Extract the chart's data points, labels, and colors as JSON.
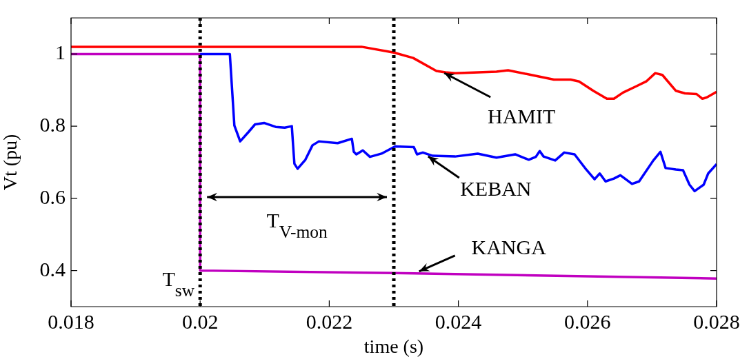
{
  "chart_data": {
    "type": "line",
    "xlabel": "time (s)",
    "ylabel": "Vt (pu)",
    "xlim": [
      0.018,
      0.028
    ],
    "xticks": [
      0.018,
      0.02,
      0.022,
      0.024,
      0.026,
      0.028
    ],
    "ylim": [
      0.3,
      1.1
    ],
    "yticks": [
      0.4,
      0.6,
      0.8,
      1
    ],
    "grid": false,
    "legend": false,
    "line_style": "solid",
    "marker": "none",
    "series": [
      {
        "color": "#ff0000",
        "x": [
          0.018,
          0.0225,
          0.023,
          0.0233,
          0.02366,
          0.0238,
          0.02395,
          0.02459,
          0.02477,
          0.02513,
          0.02548,
          0.02574,
          0.02587,
          0.02609,
          0.0263,
          0.02641,
          0.02655,
          0.02676,
          0.02691,
          0.02705,
          0.02716,
          0.02737,
          0.02751,
          0.02769,
          0.02778,
          0.02785,
          0.028
        ],
        "values": [
          1.02,
          1.02,
          1.004,
          0.989,
          0.953,
          0.949,
          0.947,
          0.951,
          0.955,
          0.942,
          0.929,
          0.929,
          0.924,
          0.898,
          0.876,
          0.876,
          0.893,
          0.911,
          0.924,
          0.947,
          0.942,
          0.898,
          0.891,
          0.889,
          0.876,
          0.88,
          0.895
        ]
      },
      {
        "color": "#0000ff",
        "x": [
          0.02,
          0.02046,
          0.02053,
          0.02062,
          0.02075,
          0.02085,
          0.02099,
          0.02117,
          0.02131,
          0.02142,
          0.02144,
          0.02146,
          0.02151,
          0.02163,
          0.02174,
          0.02184,
          0.02213,
          0.02235,
          0.02238,
          0.02242,
          0.02252,
          0.02263,
          0.02281,
          0.02302,
          0.02331,
          0.02336,
          0.02345,
          0.0236,
          0.02395,
          0.0243,
          0.02459,
          0.02488,
          0.02509,
          0.0252,
          0.02526,
          0.02532,
          0.0255,
          0.02564,
          0.0258,
          0.02598,
          0.02611,
          0.02619,
          0.02628,
          0.02641,
          0.02651,
          0.02669,
          0.0268,
          0.02702,
          0.02713,
          0.02721,
          0.02737,
          0.02748,
          0.02758,
          0.02766,
          0.0278,
          0.02787,
          0.028
        ],
        "values": [
          1,
          1,
          0.802,
          0.758,
          0.784,
          0.805,
          0.809,
          0.798,
          0.796,
          0.8,
          0.747,
          0.696,
          0.682,
          0.707,
          0.747,
          0.758,
          0.753,
          0.765,
          0.729,
          0.722,
          0.733,
          0.715,
          0.724,
          0.744,
          0.742,
          0.722,
          0.727,
          0.718,
          0.716,
          0.724,
          0.713,
          0.722,
          0.707,
          0.715,
          0.731,
          0.716,
          0.705,
          0.727,
          0.722,
          0.68,
          0.653,
          0.669,
          0.647,
          0.655,
          0.664,
          0.64,
          0.647,
          0.705,
          0.729,
          0.684,
          0.68,
          0.678,
          0.638,
          0.62,
          0.638,
          0.669,
          0.695
        ]
      },
      {
        "color": "#c000c0",
        "x": [
          0.018,
          0.02,
          0.02,
          0.023,
          0.028
        ],
        "values": [
          1,
          1,
          0.4,
          0.393,
          0.378
        ]
      }
    ],
    "ref_lines": [
      {
        "axis": "x",
        "value": 0.02,
        "label": "T$_{sw}$",
        "color": "#000000",
        "line_style": "dotted"
      },
      {
        "axis": "x",
        "value": 0.023,
        "color": "#000000",
        "line_style": "dotted"
      }
    ],
    "annotations": [
      {
        "text": "HAMIT",
        "x": 0.02375,
        "y": 0.951
      },
      {
        "text": "KEBAN",
        "x": 0.0235,
        "y": 0.72
      },
      {
        "text": "KANGA",
        "x": 0.02336,
        "y": 0.394
      },
      "T$_{V-mon}$"
    ]
  }
}
